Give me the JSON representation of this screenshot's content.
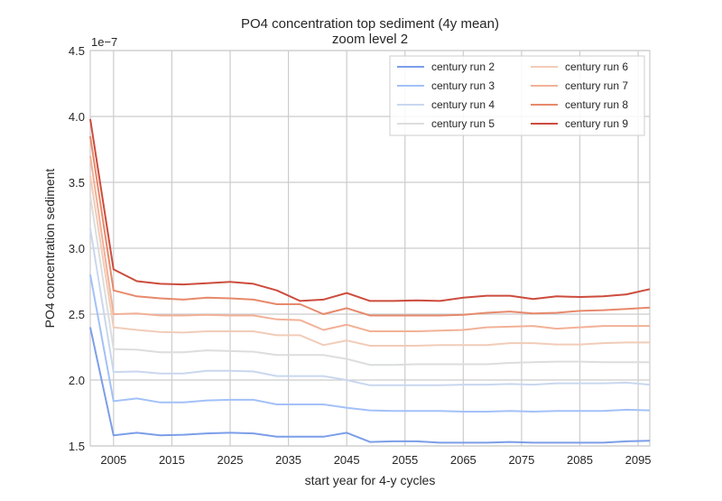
{
  "chart_data": {
    "type": "line",
    "title": "PO4 concentration top sediment (4y mean)",
    "subtitle": "zoom level 2",
    "xlabel": "start year for 4-y cycles",
    "ylabel": "PO4 concentration sediment",
    "y_multiplier": "1e−7",
    "xlim": [
      2001,
      2097
    ],
    "ylim": [
      1.5,
      4.5
    ],
    "x_ticks": [
      "2005",
      "2015",
      "2025",
      "2035",
      "2045",
      "2055",
      "2065",
      "2075",
      "2085",
      "2095"
    ],
    "x_tick_values": [
      2005,
      2015,
      2025,
      2035,
      2045,
      2055,
      2065,
      2075,
      2085,
      2095
    ],
    "y_ticks": [
      "1.5",
      "2.0",
      "2.5",
      "3.0",
      "3.5",
      "4.0",
      "4.5"
    ],
    "y_tick_values": [
      1.5,
      2.0,
      2.5,
      3.0,
      3.5,
      4.0,
      4.5
    ],
    "grid": true,
    "legend_position": "top-right",
    "x": [
      2001,
      2005,
      2009,
      2013,
      2017,
      2021,
      2025,
      2029,
      2033,
      2037,
      2041,
      2045,
      2049,
      2053,
      2057,
      2061,
      2065,
      2069,
      2073,
      2077,
      2081,
      2085,
      2089,
      2093,
      2097
    ],
    "series": [
      {
        "name": "century run 2",
        "color": "#7c9ee9",
        "values": [
          2.4,
          1.58,
          1.6,
          1.58,
          1.585,
          1.595,
          1.6,
          1.595,
          1.57,
          1.57,
          1.57,
          1.6,
          1.53,
          1.535,
          1.535,
          1.525,
          1.525,
          1.525,
          1.53,
          1.525,
          1.525,
          1.525,
          1.525,
          1.535,
          1.54
        ]
      },
      {
        "name": "century run 3",
        "color": "#a3c1f8",
        "values": [
          2.8,
          1.84,
          1.86,
          1.83,
          1.83,
          1.845,
          1.85,
          1.85,
          1.815,
          1.815,
          1.815,
          1.79,
          1.77,
          1.765,
          1.765,
          1.765,
          1.76,
          1.76,
          1.765,
          1.76,
          1.765,
          1.765,
          1.765,
          1.775,
          1.77
        ]
      },
      {
        "name": "century run 4",
        "color": "#c9d7ef",
        "values": [
          3.15,
          2.06,
          2.065,
          2.05,
          2.05,
          2.07,
          2.07,
          2.065,
          2.03,
          2.03,
          2.03,
          2.0,
          1.96,
          1.96,
          1.96,
          1.96,
          1.965,
          1.965,
          1.97,
          1.965,
          1.975,
          1.975,
          1.975,
          1.98,
          1.965
        ]
      },
      {
        "name": "century run 5",
        "color": "#dcdddd",
        "values": [
          3.4,
          2.235,
          2.23,
          2.21,
          2.21,
          2.225,
          2.22,
          2.215,
          2.19,
          2.19,
          2.19,
          2.16,
          2.115,
          2.115,
          2.12,
          2.12,
          2.12,
          2.12,
          2.13,
          2.135,
          2.14,
          2.14,
          2.135,
          2.135,
          2.135
        ]
      },
      {
        "name": "century run 6",
        "color": "#f1ccb8",
        "values": [
          3.55,
          2.4,
          2.38,
          2.365,
          2.36,
          2.37,
          2.37,
          2.37,
          2.34,
          2.34,
          2.265,
          2.3,
          2.26,
          2.26,
          2.26,
          2.265,
          2.265,
          2.265,
          2.28,
          2.28,
          2.27,
          2.27,
          2.28,
          2.285,
          2.285
        ]
      },
      {
        "name": "century run 7",
        "color": "#f2b197",
        "values": [
          3.7,
          2.5,
          2.505,
          2.49,
          2.49,
          2.495,
          2.49,
          2.49,
          2.46,
          2.455,
          2.38,
          2.42,
          2.37,
          2.37,
          2.37,
          2.375,
          2.38,
          2.4,
          2.405,
          2.41,
          2.39,
          2.4,
          2.41,
          2.41,
          2.41
        ]
      },
      {
        "name": "century run 8",
        "color": "#e7896b",
        "values": [
          3.85,
          2.68,
          2.635,
          2.62,
          2.61,
          2.625,
          2.62,
          2.61,
          2.575,
          2.575,
          2.5,
          2.545,
          2.49,
          2.49,
          2.49,
          2.49,
          2.495,
          2.51,
          2.52,
          2.505,
          2.51,
          2.525,
          2.53,
          2.54,
          2.55
        ]
      },
      {
        "name": "century run 9",
        "color": "#cc4c3d",
        "values": [
          3.98,
          2.84,
          2.75,
          2.73,
          2.725,
          2.735,
          2.745,
          2.73,
          2.68,
          2.6,
          2.61,
          2.66,
          2.6,
          2.6,
          2.605,
          2.6,
          2.625,
          2.64,
          2.64,
          2.615,
          2.635,
          2.63,
          2.635,
          2.65,
          2.69
        ]
      }
    ]
  }
}
